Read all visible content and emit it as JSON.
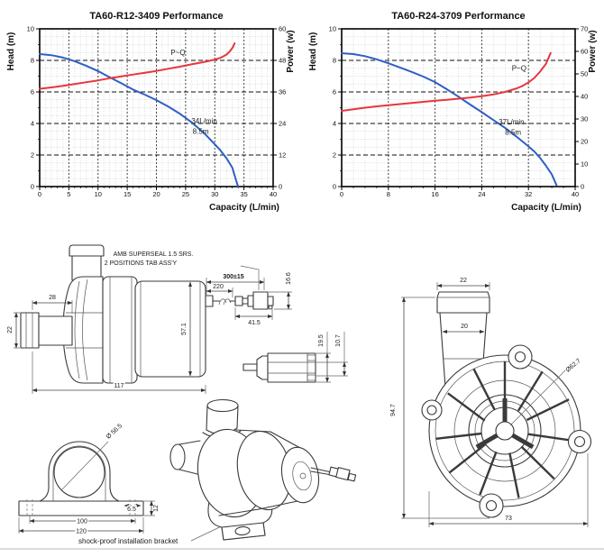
{
  "chart_data": [
    {
      "type": "line",
      "title": "TA60-R12-3409 Performance",
      "xlabel": "Capacity (L/min)",
      "ylabel_left": "Head (m)",
      "ylabel_right": "Power (w)",
      "xlim": [
        0,
        40
      ],
      "ylim_left": [
        0,
        10
      ],
      "ylim_right": [
        0,
        60
      ],
      "x_ticks": [
        0,
        5,
        10,
        15,
        20,
        25,
        30,
        35,
        40
      ],
      "y_left_ticks": [
        0,
        2,
        4,
        6,
        8,
        10
      ],
      "y_right_ticks": [
        0,
        12,
        24,
        36,
        48,
        60
      ],
      "x_minor_step": 1,
      "y_minor_step": 0.5,
      "grid": "fine gray dotted minor + black dashed major",
      "legend": "none",
      "curve_label": {
        "text": "P~Q",
        "x": 23.7,
        "y": 8.35
      },
      "annotations": [
        {
          "text": "34L/min",
          "x": 26.0,
          "y": 4.0
        },
        {
          "text": "8.5m",
          "x": 26.2,
          "y": 3.35
        }
      ],
      "series": [
        {
          "name": "Head (m)",
          "axis": "left",
          "color": "#2f5fc4",
          "points": [
            [
              0,
              8.4
            ],
            [
              2,
              8.33
            ],
            [
              4,
              8.18
            ],
            [
              5,
              8.07
            ],
            [
              6,
              7.95
            ],
            [
              8,
              7.65
            ],
            [
              10,
              7.32
            ],
            [
              12,
              6.93
            ],
            [
              14,
              6.55
            ],
            [
              15,
              6.35
            ],
            [
              16,
              6.15
            ],
            [
              18,
              5.83
            ],
            [
              20,
              5.48
            ],
            [
              22,
              5.08
            ],
            [
              24,
              4.62
            ],
            [
              26,
              4.08
            ],
            [
              28,
              3.45
            ],
            [
              30,
              2.68
            ],
            [
              31,
              2.28
            ],
            [
              32,
              1.8
            ],
            [
              33,
              1.2
            ],
            [
              33.8,
              0.2
            ],
            [
              34,
              0.02
            ]
          ]
        },
        {
          "name": "Power (w) P~Q",
          "axis": "right",
          "color": "#e8363d",
          "points": [
            [
              0,
              37.2
            ],
            [
              2,
              37.7
            ],
            [
              4,
              38.3
            ],
            [
              6,
              39
            ],
            [
              8,
              39.7
            ],
            [
              10,
              40.4
            ],
            [
              12,
              41.2
            ],
            [
              14,
              41.9
            ],
            [
              16,
              42.6
            ],
            [
              18,
              43.3
            ],
            [
              20,
              44
            ],
            [
              22,
              44.8
            ],
            [
              24,
              45.6
            ],
            [
              26,
              46.5
            ],
            [
              28,
              47.3
            ],
            [
              30,
              48.3
            ],
            [
              31,
              49
            ],
            [
              32,
              50.2
            ],
            [
              32.6,
              51.5
            ],
            [
              33.1,
              53
            ],
            [
              33.4,
              54.5
            ]
          ]
        }
      ]
    },
    {
      "type": "line",
      "title": "TA60-R24-3709 Performance",
      "xlabel": "Capacity (L/min)",
      "ylabel_left": "Head (m)",
      "ylabel_right": "Power (w)",
      "xlim": [
        0,
        40
      ],
      "ylim_left": [
        0,
        10
      ],
      "ylim_right": [
        0,
        70
      ],
      "x_ticks": [
        0,
        8,
        16,
        24,
        32,
        40
      ],
      "y_left_ticks": [
        0,
        2,
        4,
        6,
        8,
        10
      ],
      "y_right_ticks": [
        0,
        10,
        20,
        30,
        40,
        50,
        60,
        70
      ],
      "x_minor_step": 2,
      "y_minor_step": 0.5,
      "grid": "fine gray dotted minor + black dashed major",
      "legend": "none",
      "curve_label": {
        "text": "P~Q",
        "x": 30.4,
        "y": 7.35
      },
      "annotations": [
        {
          "text": "37L/min",
          "x": 26.9,
          "y": 3.95
        },
        {
          "text": "8.5m",
          "x": 28.0,
          "y": 3.3
        }
      ],
      "series": [
        {
          "name": "Head (m)",
          "axis": "left",
          "color": "#2f5fc4",
          "points": [
            [
              0,
              8.45
            ],
            [
              2,
              8.4
            ],
            [
              4,
              8.27
            ],
            [
              6,
              8.07
            ],
            [
              8,
              7.82
            ],
            [
              10,
              7.55
            ],
            [
              12,
              7.27
            ],
            [
              14,
              6.97
            ],
            [
              16,
              6.62
            ],
            [
              18,
              6.17
            ],
            [
              20,
              5.7
            ],
            [
              22,
              5.2
            ],
            [
              24,
              4.72
            ],
            [
              26,
              4.22
            ],
            [
              28,
              3.72
            ],
            [
              30,
              3.15
            ],
            [
              32,
              2.55
            ],
            [
              33,
              2.22
            ],
            [
              34,
              1.82
            ],
            [
              35,
              1.32
            ],
            [
              36,
              0.77
            ],
            [
              36.8,
              0.1
            ]
          ]
        },
        {
          "name": "Power (w) P~Q",
          "axis": "right",
          "color": "#e8363d",
          "points": [
            [
              0,
              33.6
            ],
            [
              2,
              34.3
            ],
            [
              4,
              35
            ],
            [
              6,
              35.6
            ],
            [
              8,
              36.1
            ],
            [
              10,
              36.6
            ],
            [
              12,
              37.1
            ],
            [
              14,
              37.6
            ],
            [
              16,
              38.1
            ],
            [
              18,
              38.5
            ],
            [
              20,
              39
            ],
            [
              22,
              39.5
            ],
            [
              24,
              40.1
            ],
            [
              26,
              40.9
            ],
            [
              28,
              42
            ],
            [
              30,
              43.6
            ],
            [
              31,
              44.7
            ],
            [
              32,
              46.2
            ],
            [
              33,
              48.2
            ],
            [
              34,
              51
            ],
            [
              35,
              54.5
            ],
            [
              35.8,
              59.3
            ]
          ]
        }
      ]
    }
  ],
  "drawings": {
    "side_view": {
      "dim_inlet_length": "28",
      "dim_inlet_diameter": "22",
      "dim_motor_diameter": "57.1",
      "dim_total_length": "117"
    },
    "cable": {
      "label_line1": "AMB SUPERSEAL 1.5 SRS.",
      "label_line2": "2 POSITIONS TAB ASS'Y",
      "dim_cable_length": "300±15",
      "dim_220": "220",
      "dim_16_6": "16.6",
      "dim_41_5": "41.5"
    },
    "connector_detail": {
      "dim_19_5": "19.5",
      "dim_10_7": "10.7"
    },
    "front_view": {
      "dim_outlet_od": "22",
      "dim_outlet_id": "20",
      "dim_height": "94.7",
      "dim_width": "73",
      "dim_volute_diameter": "Ø62.7"
    },
    "bracket": {
      "dim_diameter": "Ø 56.5",
      "dim_6_5": "6.5",
      "dim_12": "12",
      "dim_100": "100",
      "dim_120": "120",
      "caption": "shock-proof installation bracket"
    }
  }
}
